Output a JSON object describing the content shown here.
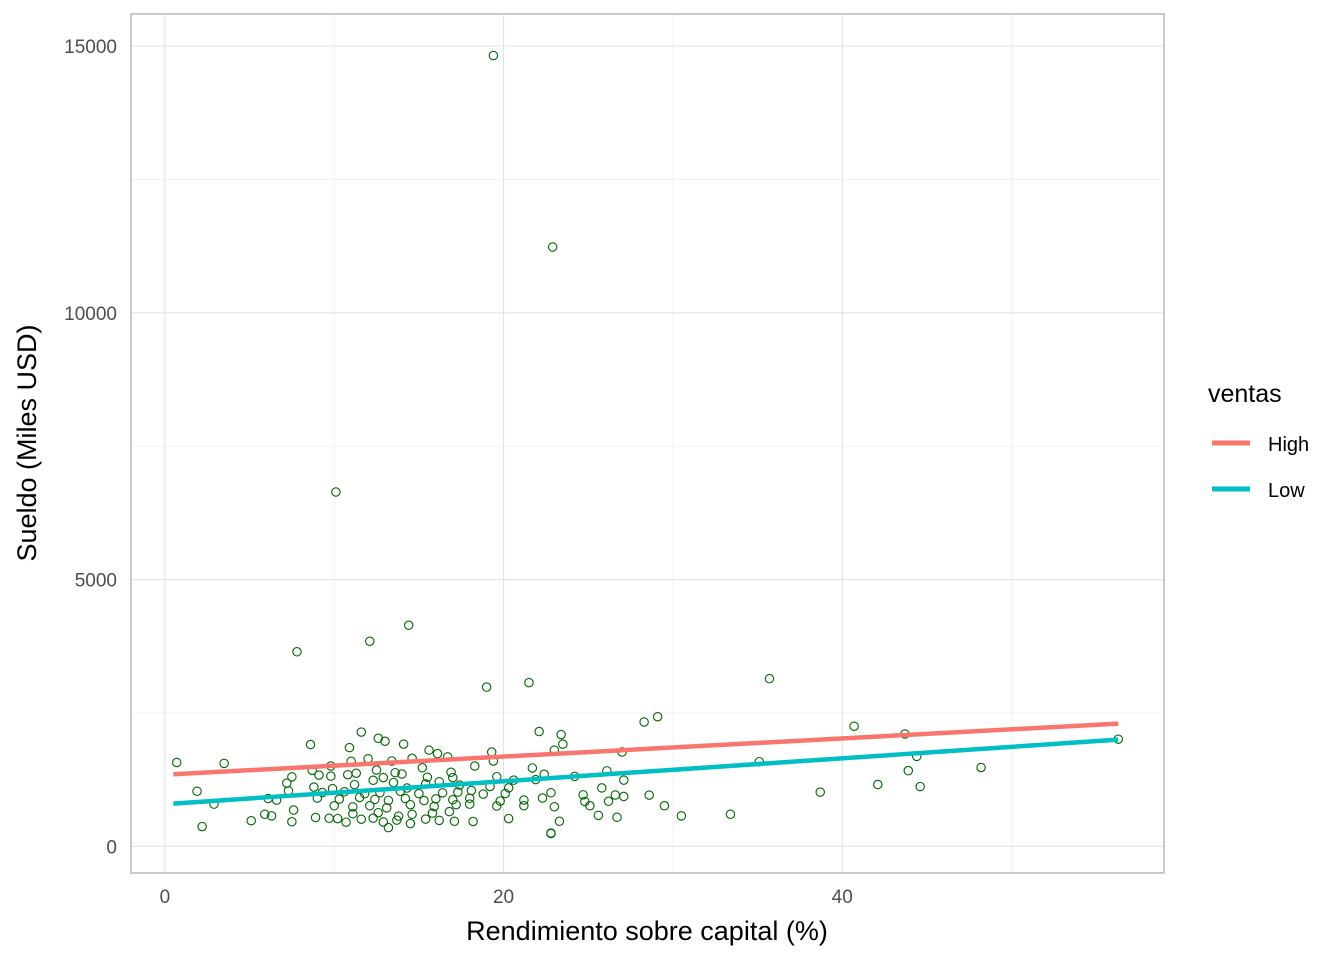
{
  "chart_data": {
    "type": "scatter",
    "xlabel": "Rendimiento sobre capital (%)",
    "ylabel": "Sueldo (Miles USD)",
    "xlim": [
      -2,
      59
    ],
    "ylim": [
      -500,
      15600
    ],
    "x_ticks": [
      0,
      20,
      40
    ],
    "x_tick_labels": [
      "0",
      "20",
      "40"
    ],
    "y_ticks": [
      0,
      5000,
      10000,
      15000
    ],
    "y_tick_labels": [
      "0",
      "5000",
      "10000",
      "15000"
    ],
    "grid": true,
    "legend": {
      "title": "ventas",
      "placement": "right",
      "entries": [
        {
          "label": "High",
          "color": "#f8766d"
        },
        {
          "label": "Low",
          "color": "#00bfc4"
        }
      ]
    },
    "point_color": "#006400",
    "trend_lines": [
      {
        "name": "High",
        "color": "#f8766d",
        "x": [
          0.5,
          56.3
        ],
        "y": [
          1350,
          2300
        ]
      },
      {
        "name": "Low",
        "color": "#00bfc4",
        "x": [
          0.5,
          56.3
        ],
        "y": [
          800,
          2000
        ]
      }
    ],
    "points": [
      [
        19.4,
        14822
      ],
      [
        22.9,
        11233
      ],
      [
        10.1,
        6640
      ],
      [
        14.4,
        4143
      ],
      [
        12.1,
        3844
      ],
      [
        7.8,
        3646
      ],
      [
        35.7,
        3142
      ],
      [
        21.5,
        3068
      ],
      [
        19.0,
        2983
      ],
      [
        29.1,
        2429
      ],
      [
        28.3,
        2330
      ],
      [
        40.7,
        2251
      ],
      [
        43.7,
        2105
      ],
      [
        22.1,
        2151
      ],
      [
        23.4,
        2094
      ],
      [
        56.3,
        2008
      ],
      [
        11.6,
        2141
      ],
      [
        12.6,
        2025
      ],
      [
        13.0,
        1970
      ],
      [
        14.1,
        1916
      ],
      [
        8.6,
        1908
      ],
      [
        10.9,
        1850
      ],
      [
        15.6,
        1802
      ],
      [
        19.3,
        1767
      ],
      [
        16.1,
        1737
      ],
      [
        23.0,
        1802
      ],
      [
        23.5,
        1915
      ],
      [
        27.0,
        1767
      ],
      [
        12.0,
        1642
      ],
      [
        13.4,
        1600
      ],
      [
        14.6,
        1650
      ],
      [
        16.7,
        1677
      ],
      [
        11.0,
        1595
      ],
      [
        19.4,
        1600
      ],
      [
        0.7,
        1571
      ],
      [
        3.5,
        1555
      ],
      [
        35.1,
        1586
      ],
      [
        44.4,
        1686
      ],
      [
        48.2,
        1478
      ],
      [
        9.8,
        1505
      ],
      [
        10.8,
        1342
      ],
      [
        12.5,
        1430
      ],
      [
        13.6,
        1380
      ],
      [
        15.2,
        1472
      ],
      [
        16.9,
        1388
      ],
      [
        18.3,
        1505
      ],
      [
        21.7,
        1469
      ],
      [
        26.1,
        1415
      ],
      [
        43.9,
        1418
      ],
      [
        9.1,
        1335
      ],
      [
        9.8,
        1316
      ],
      [
        8.7,
        1424
      ],
      [
        7.5,
        1302
      ],
      [
        11.3,
        1370
      ],
      [
        12.9,
        1288
      ],
      [
        14.0,
        1355
      ],
      [
        15.5,
        1295
      ],
      [
        17.0,
        1288
      ],
      [
        19.6,
        1305
      ],
      [
        20.6,
        1240
      ],
      [
        21.9,
        1250
      ],
      [
        22.4,
        1350
      ],
      [
        24.2,
        1310
      ],
      [
        27.1,
        1240
      ],
      [
        7.2,
        1185
      ],
      [
        8.8,
        1110
      ],
      [
        9.9,
        1082
      ],
      [
        11.2,
        1155
      ],
      [
        12.3,
        1238
      ],
      [
        13.5,
        1195
      ],
      [
        14.3,
        1092
      ],
      [
        15.4,
        1170
      ],
      [
        16.2,
        1210
      ],
      [
        17.4,
        1150
      ],
      [
        18.1,
        1046
      ],
      [
        19.2,
        1122
      ],
      [
        20.3,
        1095
      ],
      [
        42.1,
        1158
      ],
      [
        44.6,
        1120
      ],
      [
        25.8,
        1095
      ],
      [
        1.9,
        1032
      ],
      [
        7.3,
        1040
      ],
      [
        9.3,
        1008
      ],
      [
        10.6,
        1022
      ],
      [
        11.8,
        985
      ],
      [
        12.7,
        1005
      ],
      [
        13.9,
        1032
      ],
      [
        15.0,
        988
      ],
      [
        16.4,
        1002
      ],
      [
        17.3,
        1016
      ],
      [
        18.8,
        978
      ],
      [
        20.1,
        990
      ],
      [
        22.8,
        1004
      ],
      [
        24.7,
        965
      ],
      [
        26.6,
        962
      ],
      [
        28.6,
        960
      ],
      [
        38.7,
        1016
      ],
      [
        6.1,
        896
      ],
      [
        6.6,
        866
      ],
      [
        9.0,
        906
      ],
      [
        10.3,
        884
      ],
      [
        11.5,
        916
      ],
      [
        12.4,
        880
      ],
      [
        13.2,
        862
      ],
      [
        14.2,
        896
      ],
      [
        15.3,
        858
      ],
      [
        16.0,
        890
      ],
      [
        17.0,
        872
      ],
      [
        18.0,
        900
      ],
      [
        19.8,
        848
      ],
      [
        21.2,
        868
      ],
      [
        22.3,
        905
      ],
      [
        24.8,
        840
      ],
      [
        26.2,
        844
      ],
      [
        27.1,
        935
      ],
      [
        2.9,
        790
      ],
      [
        5.9,
        600
      ],
      [
        7.6,
        680
      ],
      [
        10.0,
        760
      ],
      [
        11.1,
        740
      ],
      [
        12.1,
        760
      ],
      [
        13.1,
        720
      ],
      [
        14.5,
        780
      ],
      [
        15.9,
        746
      ],
      [
        17.2,
        780
      ],
      [
        18.0,
        790
      ],
      [
        19.6,
        755
      ],
      [
        21.2,
        760
      ],
      [
        23.0,
        742
      ],
      [
        25.1,
        760
      ],
      [
        29.5,
        760
      ],
      [
        5.1,
        480
      ],
      [
        6.3,
        570
      ],
      [
        7.5,
        460
      ],
      [
        8.9,
        540
      ],
      [
        10.2,
        520
      ],
      [
        10.7,
        452
      ],
      [
        11.6,
        508
      ],
      [
        12.3,
        528
      ],
      [
        12.9,
        456
      ],
      [
        13.7,
        490
      ],
      [
        14.5,
        426
      ],
      [
        15.4,
        510
      ],
      [
        16.2,
        486
      ],
      [
        17.1,
        470
      ],
      [
        18.2,
        466
      ],
      [
        20.3,
        520
      ],
      [
        23.3,
        470
      ],
      [
        25.6,
        580
      ],
      [
        26.7,
        545
      ],
      [
        30.5,
        570
      ],
      [
        33.4,
        600
      ],
      [
        2.2,
        370
      ],
      [
        13.2,
        350
      ],
      [
        22.8,
        250
      ],
      [
        22.8,
        240
      ],
      [
        14.6,
        600
      ],
      [
        15.8,
        622
      ],
      [
        12.6,
        630
      ],
      [
        11.1,
        610
      ],
      [
        9.7,
        525
      ],
      [
        13.8,
        565
      ],
      [
        16.8,
        650
      ]
    ]
  }
}
